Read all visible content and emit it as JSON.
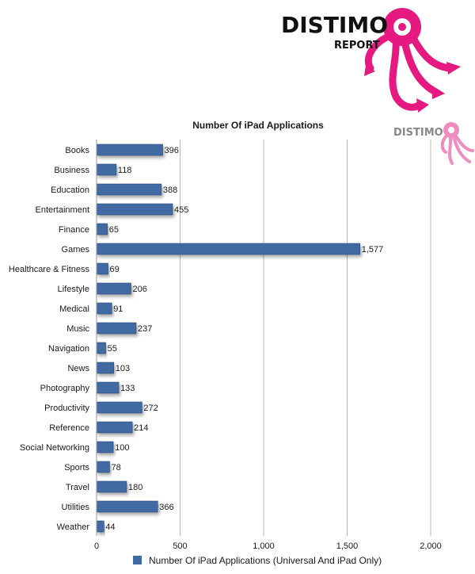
{
  "header": {
    "brand": "DISTIMO",
    "report_label": "REPORT",
    "watermark_brand": "DISTIMO"
  },
  "colors": {
    "bar": "#3f6aa1",
    "bar_edge": "#2c4f7e",
    "logo_pink": "#e5197f",
    "watermark_pink": "#f08cc0",
    "grid": "#b8b8b8"
  },
  "chart_data": {
    "type": "bar",
    "orientation": "horizontal",
    "title": "Number Of iPad Applications",
    "categories": [
      "Books",
      "Business",
      "Education",
      "Entertainment",
      "Finance",
      "Games",
      "Healthcare & Fitness",
      "Lifestyle",
      "Medical",
      "Music",
      "Navigation",
      "News",
      "Photography",
      "Productivity",
      "Reference",
      "Social Networking",
      "Sports",
      "Travel",
      "Utilities",
      "Weather"
    ],
    "series": [
      {
        "name": "Number Of iPad Applications (Universal And iPad Only)",
        "values": [
          396,
          118,
          388,
          455,
          65,
          1577,
          69,
          206,
          91,
          237,
          55,
          103,
          133,
          272,
          214,
          100,
          78,
          180,
          366,
          44
        ]
      }
    ],
    "value_labels": [
      "396",
      "118",
      "388",
      "455",
      "65",
      "1,577",
      "69",
      "206",
      "91",
      "237",
      "55",
      "103",
      "133",
      "272",
      "214",
      "100",
      "78",
      "180",
      "366",
      "44"
    ],
    "xlim": [
      0,
      2000
    ],
    "x_ticks": [
      0,
      500,
      1000,
      1500,
      2000
    ],
    "x_tick_labels": [
      "0",
      "500",
      "1,000",
      "1,500",
      "2,000"
    ],
    "grid": true,
    "legend_position": "bottom"
  }
}
